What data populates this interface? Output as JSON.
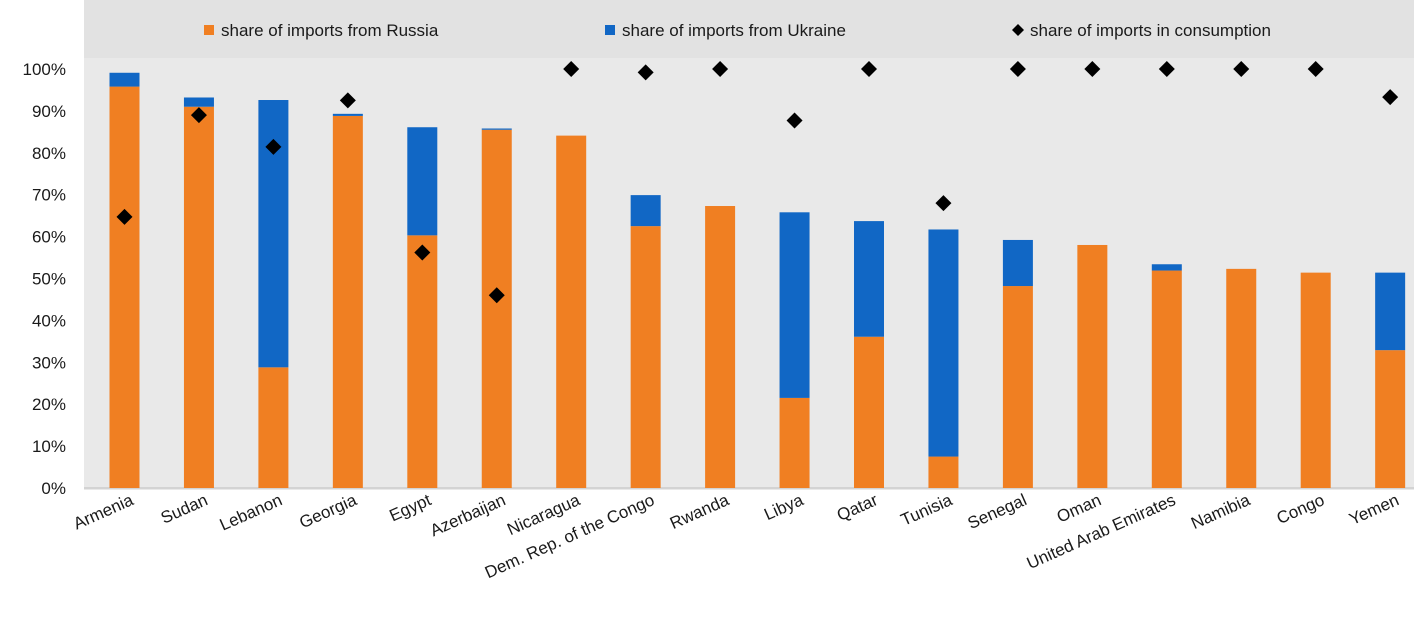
{
  "chart_data": {
    "type": "bar",
    "stacked": true,
    "categories": [
      "Armenia",
      "Sudan",
      "Lebanon",
      "Georgia",
      "Egypt",
      "Azerbaijan",
      "Nicaragua",
      "Dem. Rep. of the Congo",
      "Rwanda",
      "Libya",
      "Qatar",
      "Tunisia",
      "Senegal",
      "Oman",
      "United Arab Emirates",
      "Namibia",
      "Congo",
      "Yemen"
    ],
    "series": [
      {
        "name": "share of imports from Russia",
        "kind": "bar",
        "color": "#f07f22",
        "values": [
          95.8,
          91.0,
          28.8,
          88.8,
          60.3,
          85.5,
          84.1,
          62.5,
          67.3,
          21.5,
          36.1,
          7.5,
          48.2,
          58.0,
          51.9,
          52.3,
          51.4,
          32.9
        ]
      },
      {
        "name": "share of imports from Ukraine",
        "kind": "bar",
        "color": "#1167c5",
        "values": [
          3.3,
          2.2,
          63.8,
          0.5,
          25.8,
          0.3,
          0.0,
          7.4,
          0.0,
          44.3,
          27.6,
          54.2,
          11.0,
          0.0,
          1.5,
          0.0,
          0.0,
          18.5
        ]
      },
      {
        "name": "share of imports in consumption",
        "kind": "marker",
        "color": "#000000",
        "values": [
          64.7,
          89.0,
          81.4,
          92.5,
          56.2,
          46.0,
          100.0,
          99.2,
          100.0,
          87.7,
          100.0,
          68.0,
          100.0,
          100.0,
          100.0,
          100.0,
          100.0,
          93.3
        ]
      }
    ],
    "ylim": [
      0,
      100
    ],
    "yticks": [
      "0%",
      "10%",
      "20%",
      "30%",
      "40%",
      "50%",
      "60%",
      "70%",
      "80%",
      "90%",
      "100%"
    ],
    "grid": false,
    "legend_position": "top"
  }
}
